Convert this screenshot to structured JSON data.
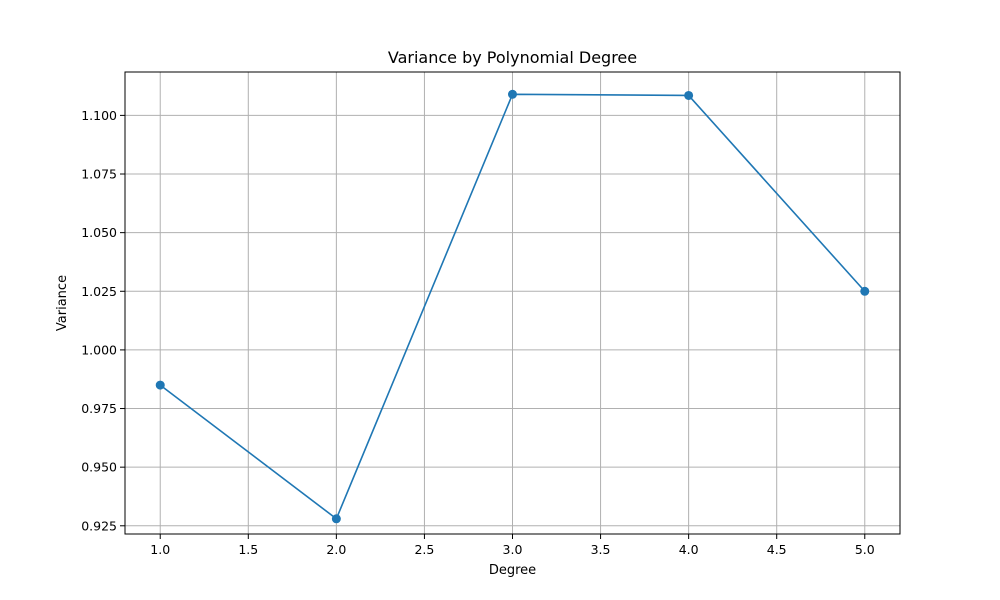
{
  "chart_data": {
    "type": "line",
    "title": "Variance by Polynomial Degree",
    "xlabel": "Degree",
    "ylabel": "Variance",
    "xlim": [
      0.8,
      5.2
    ],
    "ylim": [
      0.9215,
      1.1185
    ],
    "x_ticks": [
      1.0,
      1.5,
      2.0,
      2.5,
      3.0,
      3.5,
      4.0,
      4.5,
      5.0
    ],
    "x_tick_labels": [
      "1.0",
      "1.5",
      "2.0",
      "2.5",
      "3.0",
      "3.5",
      "4.0",
      "4.5",
      "5.0"
    ],
    "y_ticks": [
      0.925,
      0.95,
      0.975,
      1.0,
      1.025,
      1.05,
      1.075,
      1.1
    ],
    "y_tick_labels": [
      "0.925",
      "0.950",
      "0.975",
      "1.000",
      "1.025",
      "1.050",
      "1.075",
      "1.100"
    ],
    "grid": true,
    "series": [
      {
        "color": "#1f77b4",
        "x": [
          1,
          2,
          3,
          4,
          5
        ],
        "y": [
          0.985,
          0.928,
          1.109,
          1.1085,
          1.025
        ]
      }
    ]
  }
}
